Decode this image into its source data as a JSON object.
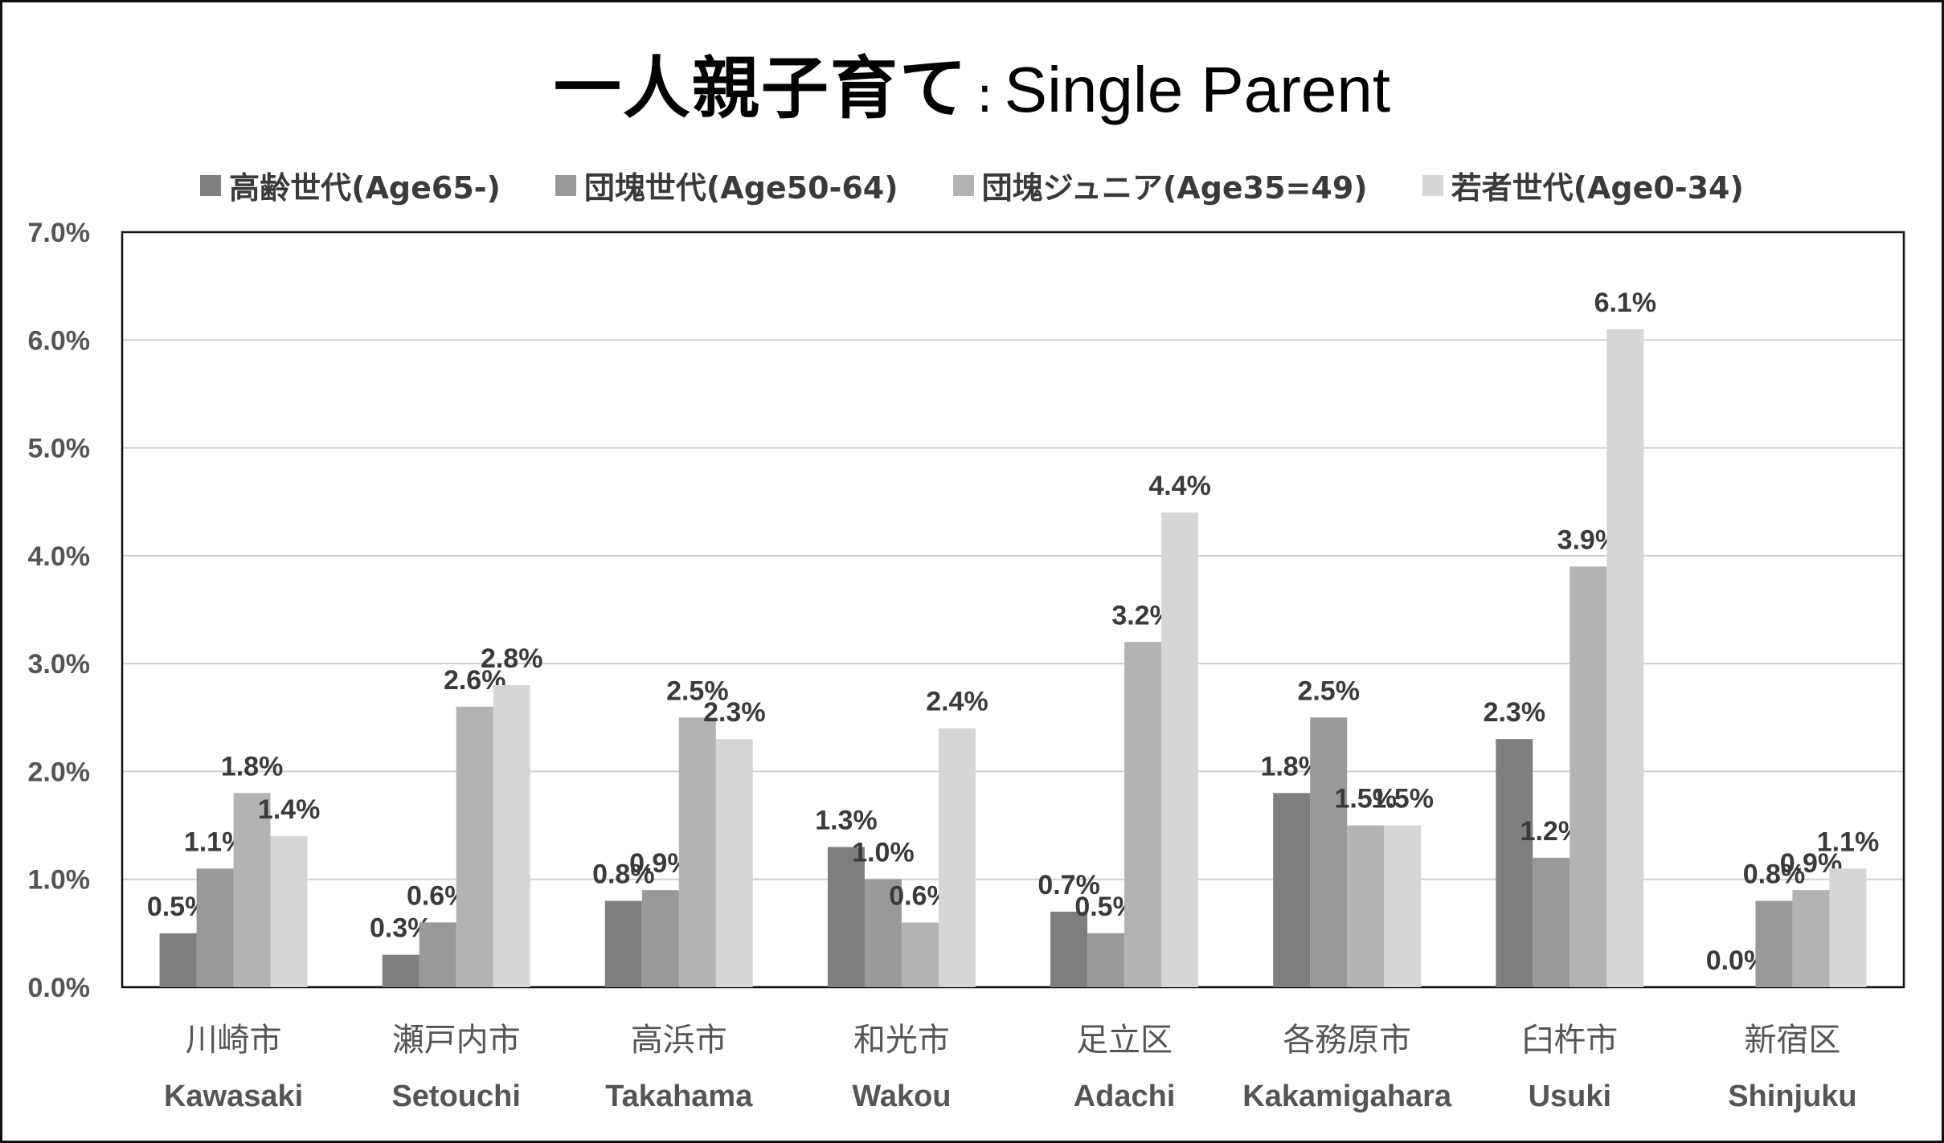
{
  "chart_data": {
    "type": "bar",
    "title_jp": "一人親子育て",
    "title_sep": ":",
    "title_en": "Single Parent",
    "categories": [
      {
        "jp": "川崎市",
        "en": "Kawasaki"
      },
      {
        "jp": "瀬戸内市",
        "en": "Setouchi"
      },
      {
        "jp": "高浜市",
        "en": "Takahama"
      },
      {
        "jp": "和光市",
        "en": "Wakou"
      },
      {
        "jp": "足立区",
        "en": "Adachi"
      },
      {
        "jp": "各務原市",
        "en": "Kakamigahara"
      },
      {
        "jp": "臼杵市",
        "en": "Usuki"
      },
      {
        "jp": "新宿区",
        "en": "Shinjuku"
      }
    ],
    "series": [
      {
        "name": "高齢世代(Age65-)",
        "color": "#7f7f7f",
        "values": [
          0.5,
          0.3,
          0.8,
          1.3,
          0.7,
          1.8,
          2.3,
          0.0
        ]
      },
      {
        "name": "団塊世代(Age50-64)",
        "color": "#999999",
        "values": [
          1.1,
          0.6,
          0.9,
          1.0,
          0.5,
          2.5,
          1.2,
          0.8
        ]
      },
      {
        "name": "団塊ジュニア(Age35=49)",
        "color": "#b3b3b3",
        "values": [
          1.8,
          2.6,
          2.5,
          0.6,
          3.2,
          1.5,
          3.9,
          0.9
        ]
      },
      {
        "name": "若者世代(Age0-34)",
        "color": "#d6d6d6",
        "values": [
          1.4,
          2.8,
          2.3,
          2.4,
          4.4,
          1.5,
          6.1,
          1.1
        ]
      }
    ],
    "data_labels": [
      [
        "0.5%",
        "1.1%",
        "1.8%",
        "1.4%"
      ],
      [
        "0.3%",
        "0.6%",
        "2.6%",
        "2.8%"
      ],
      [
        "0.8%",
        "0.9%",
        "2.5%",
        "2.3%"
      ],
      [
        "1.3%",
        "1.0%",
        "0.6%",
        "2.4%"
      ],
      [
        "0.7%",
        "0.5%",
        "3.2%",
        "4.4%"
      ],
      [
        "1.8%",
        "2.5%",
        "1.5%",
        "1.5%"
      ],
      [
        "2.3%",
        "1.2%",
        "3.9%",
        "6.1%"
      ],
      [
        "0.0%",
        "0.8%",
        "0.9%",
        "1.1%"
      ]
    ],
    "y_ticks": [
      "0.0%",
      "1.0%",
      "2.0%",
      "3.0%",
      "4.0%",
      "5.0%",
      "6.0%",
      "7.0%"
    ],
    "ylim": [
      0,
      7
    ],
    "grid": true,
    "legend_position": "top"
  }
}
